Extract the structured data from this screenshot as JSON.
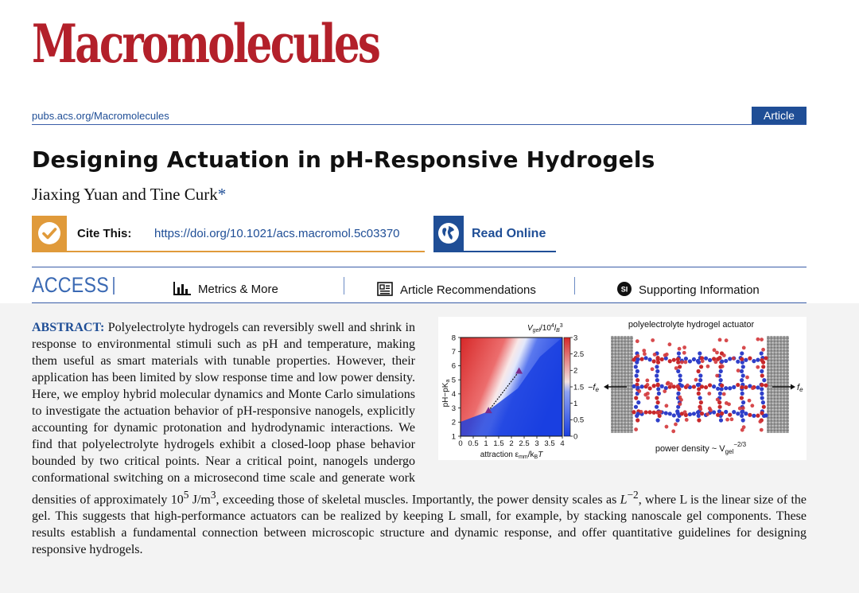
{
  "journal": {
    "name": "Macromolecules",
    "url": "pubs.acs.org/Macromolecules",
    "article_type": "Article"
  },
  "article": {
    "title": "Designing Actuation in pH-Responsive Hydrogels",
    "authors": "Jiaxing Yuan and Tine Curk",
    "corresponding_mark": "*"
  },
  "cite": {
    "label": "Cite This:",
    "doi": "https://doi.org/10.1021/acs.macromol.5c03370"
  },
  "read_online": {
    "label": "Read Online"
  },
  "access_bar": {
    "access_label": "ACCESS",
    "metrics": "Metrics & More",
    "recommendations": "Article Recommendations",
    "supporting": "Supporting Information",
    "si_badge": "SI"
  },
  "abstract": {
    "label": "ABSTRACT:",
    "text_before": "Polyelectrolyte hydrogels can reversibly swell and shrink in response to environmental stimuli such as pH and temperature, making them useful as smart materials with tunable properties. However, their application has been limited by slow response time and low power density. Here, we employ hybrid molecular dynamics and Monte Carlo simulations to investigate the actuation behavior of pH-responsive nanogels, explicitly accounting for dynamic protonation and hydrodynamic interactions. We find that polyelectrolyte hydrogels exhibit a closed-loop phase behavior bounded by two critical points. Near a critical point, nanogels undergo conformational switching on a microsecond time scale and generate work densities of approximately 10",
    "sup_exp": "5",
    "unit_j": " J/m",
    "sup_unit": "3",
    "text_mid": ", exceeding those of skeletal muscles. Importantly, the power density scales as ",
    "scaling_var": "L",
    "scaling_exp": "−2",
    "text_after": ", where L is the linear size of the gel. This suggests that high-performance actuators can be realized by keeping L small, for example, by stacking nanoscale gel components. These results establish a fundamental connection between microscopic structure and dynamic response, and offer quantitative guidelines for designing responsive hydrogels."
  },
  "toc_graphic": {
    "heatmap": {
      "ylabel": "pH−pK",
      "ylabel_sub": "a",
      "xlabel_prefix": "attraction ε",
      "xlabel_sub": "mm",
      "xlabel_suffix": "/k",
      "xlabel_sub2": "B",
      "xlabel_T": "T",
      "colorbar_title_prefix": "V",
      "colorbar_title_sub": "gel",
      "colorbar_title_mid": "/10",
      "colorbar_title_sup": "4",
      "colorbar_title_l": "l",
      "colorbar_title_sub2": "B",
      "colorbar_title_sup2": "3",
      "x_ticks": [
        "0",
        "0.5",
        "1",
        "1.5",
        "2",
        "2.5",
        "3",
        "3.5",
        "4"
      ],
      "y_ticks": [
        "1",
        "2",
        "3",
        "4",
        "5",
        "6",
        "7",
        "8"
      ],
      "colorbar_ticks": [
        "0",
        "0.5",
        "1",
        "1.5",
        "2",
        "2.5",
        "3"
      ],
      "critical_points": [
        {
          "x": 1.1,
          "y": 2.8
        },
        {
          "x": 2.3,
          "y": 5.6
        }
      ],
      "colors": {
        "swollen": "#d62828",
        "collapsed": "#1a3fe0"
      }
    },
    "actuator": {
      "title": "polyelectrolyte hydrogel actuator",
      "force_left": "−f",
      "force_right": "f",
      "force_sub": "e",
      "power_label": "power density ~ V",
      "power_sub": "gel",
      "power_sup": "−2/3"
    }
  }
}
